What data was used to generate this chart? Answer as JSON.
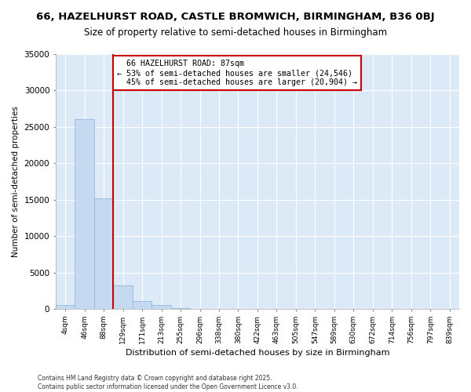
{
  "title": "66, HAZELHURST ROAD, CASTLE BROMWICH, BIRMINGHAM, B36 0BJ",
  "subtitle": "Size of property relative to semi-detached houses in Birmingham",
  "xlabel": "Distribution of semi-detached houses by size in Birmingham",
  "ylabel": "Number of semi-detached properties",
  "bin_labels": [
    "4sqm",
    "46sqm",
    "88sqm",
    "129sqm",
    "171sqm",
    "213sqm",
    "255sqm",
    "296sqm",
    "338sqm",
    "380sqm",
    "422sqm",
    "463sqm",
    "505sqm",
    "547sqm",
    "589sqm",
    "630sqm",
    "672sqm",
    "714sqm",
    "756sqm",
    "797sqm",
    "839sqm"
  ],
  "bar_values": [
    500,
    26100,
    15200,
    3250,
    1100,
    500,
    100,
    30,
    10,
    5,
    3,
    2,
    1,
    1,
    0,
    0,
    0,
    0,
    0,
    0,
    0
  ],
  "bar_color": "#c5d9f1",
  "bar_edge_color": "#8ab0d8",
  "red_line_bin_index": 2,
  "subject_line_label": "66 HAZELHURST ROAD: 87sqm",
  "pct_smaller": "53%",
  "n_smaller": "24,546",
  "pct_larger": "45%",
  "n_larger": "20,904",
  "annotation_box_color": "#cc0000",
  "red_line_color": "#cc0000",
  "fig_background_color": "#ffffff",
  "plot_bg_color": "#dce9f7",
  "grid_color": "#ffffff",
  "ylim": [
    0,
    35000
  ],
  "yticks": [
    0,
    5000,
    10000,
    15000,
    20000,
    25000,
    30000,
    35000
  ],
  "footer_line1": "Contains HM Land Registry data © Crown copyright and database right 2025.",
  "footer_line2": "Contains public sector information licensed under the Open Government Licence v3.0."
}
